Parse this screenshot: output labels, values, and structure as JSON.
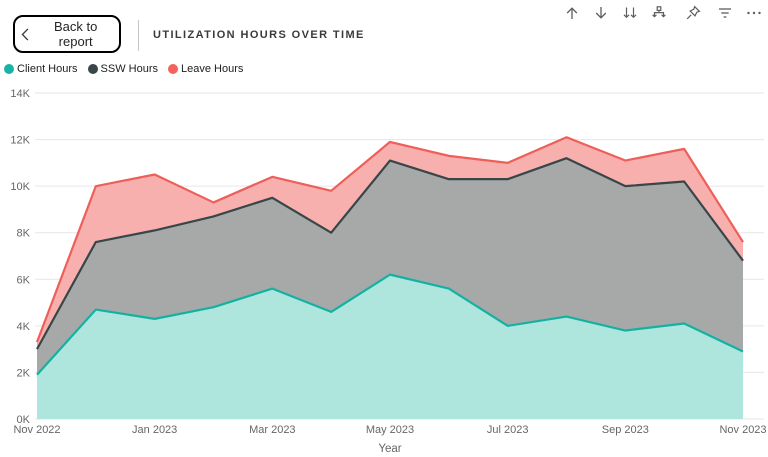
{
  "header": {
    "back_button_label": "Back to report",
    "title": "UTILIZATION HOURS OVER TIME",
    "toolbar_icons": [
      "drill-up",
      "drill-down",
      "go-to-next-level",
      "expand-all-down-one-level",
      "pin",
      "filter",
      "more-options"
    ],
    "icon_color": "#5f5e5c"
  },
  "legend": {
    "items": [
      {
        "label": "Client Hours",
        "color": "#16b3a6"
      },
      {
        "label": "SSW Hours",
        "color": "#374649"
      },
      {
        "label": "Leave Hours",
        "color": "#f4625d"
      }
    ]
  },
  "chart_data": {
    "type": "area",
    "stacked": true,
    "title": "UTILIZATION HOURS OVER TIME",
    "xlabel": "Year",
    "ylabel": "",
    "x": [
      "Nov 2022",
      "Dec 2022",
      "Jan 2023",
      "Feb 2023",
      "Mar 2023",
      "Apr 2023",
      "May 2023",
      "Jun 2023",
      "Jul 2023",
      "Aug 2023",
      "Sep 2023",
      "Oct 2023",
      "Nov 2023"
    ],
    "x_tick_labels": [
      "Nov 2022",
      "Jan 2023",
      "Mar 2023",
      "May 2023",
      "Jul 2023",
      "Sep 2023",
      "Nov 2023"
    ],
    "y_ticks": [
      "0K",
      "2K",
      "4K",
      "6K",
      "8K",
      "10K",
      "12K",
      "14K"
    ],
    "ylim_k": [
      0,
      14
    ],
    "grid": true,
    "grid_color": "#e6e6e6",
    "legend_position": "top-left",
    "units": "thousands of hours",
    "series": [
      {
        "name": "Client Hours",
        "line_color": "#14b1a3",
        "fill_color": "#aee5dd",
        "values_k": [
          1.9,
          4.7,
          4.3,
          4.8,
          5.6,
          4.6,
          6.2,
          5.6,
          4.0,
          4.4,
          3.8,
          4.1,
          2.9
        ]
      },
      {
        "name": "SSW Hours",
        "line_color": "#374649",
        "fill_color": "#a7a9a9",
        "values_k": [
          1.1,
          2.9,
          3.8,
          3.9,
          3.9,
          3.4,
          4.9,
          4.7,
          6.3,
          6.8,
          6.2,
          6.1,
          3.9
        ],
        "stack_top_k": [
          3.0,
          7.6,
          8.1,
          8.7,
          9.5,
          8.0,
          11.1,
          10.3,
          10.3,
          11.2,
          10.0,
          10.2,
          6.8
        ]
      },
      {
        "name": "Leave Hours",
        "line_color": "#ee5f5a",
        "fill_color": "#f8b0ae",
        "values_k": [
          0.3,
          2.4,
          2.4,
          0.6,
          0.9,
          1.8,
          0.8,
          1.0,
          0.7,
          0.9,
          1.1,
          1.4,
          0.8
        ],
        "stack_top_k": [
          3.3,
          10.0,
          10.5,
          9.3,
          10.4,
          9.8,
          11.9,
          11.3,
          11.0,
          12.1,
          11.1,
          11.6,
          7.6
        ]
      }
    ]
  }
}
